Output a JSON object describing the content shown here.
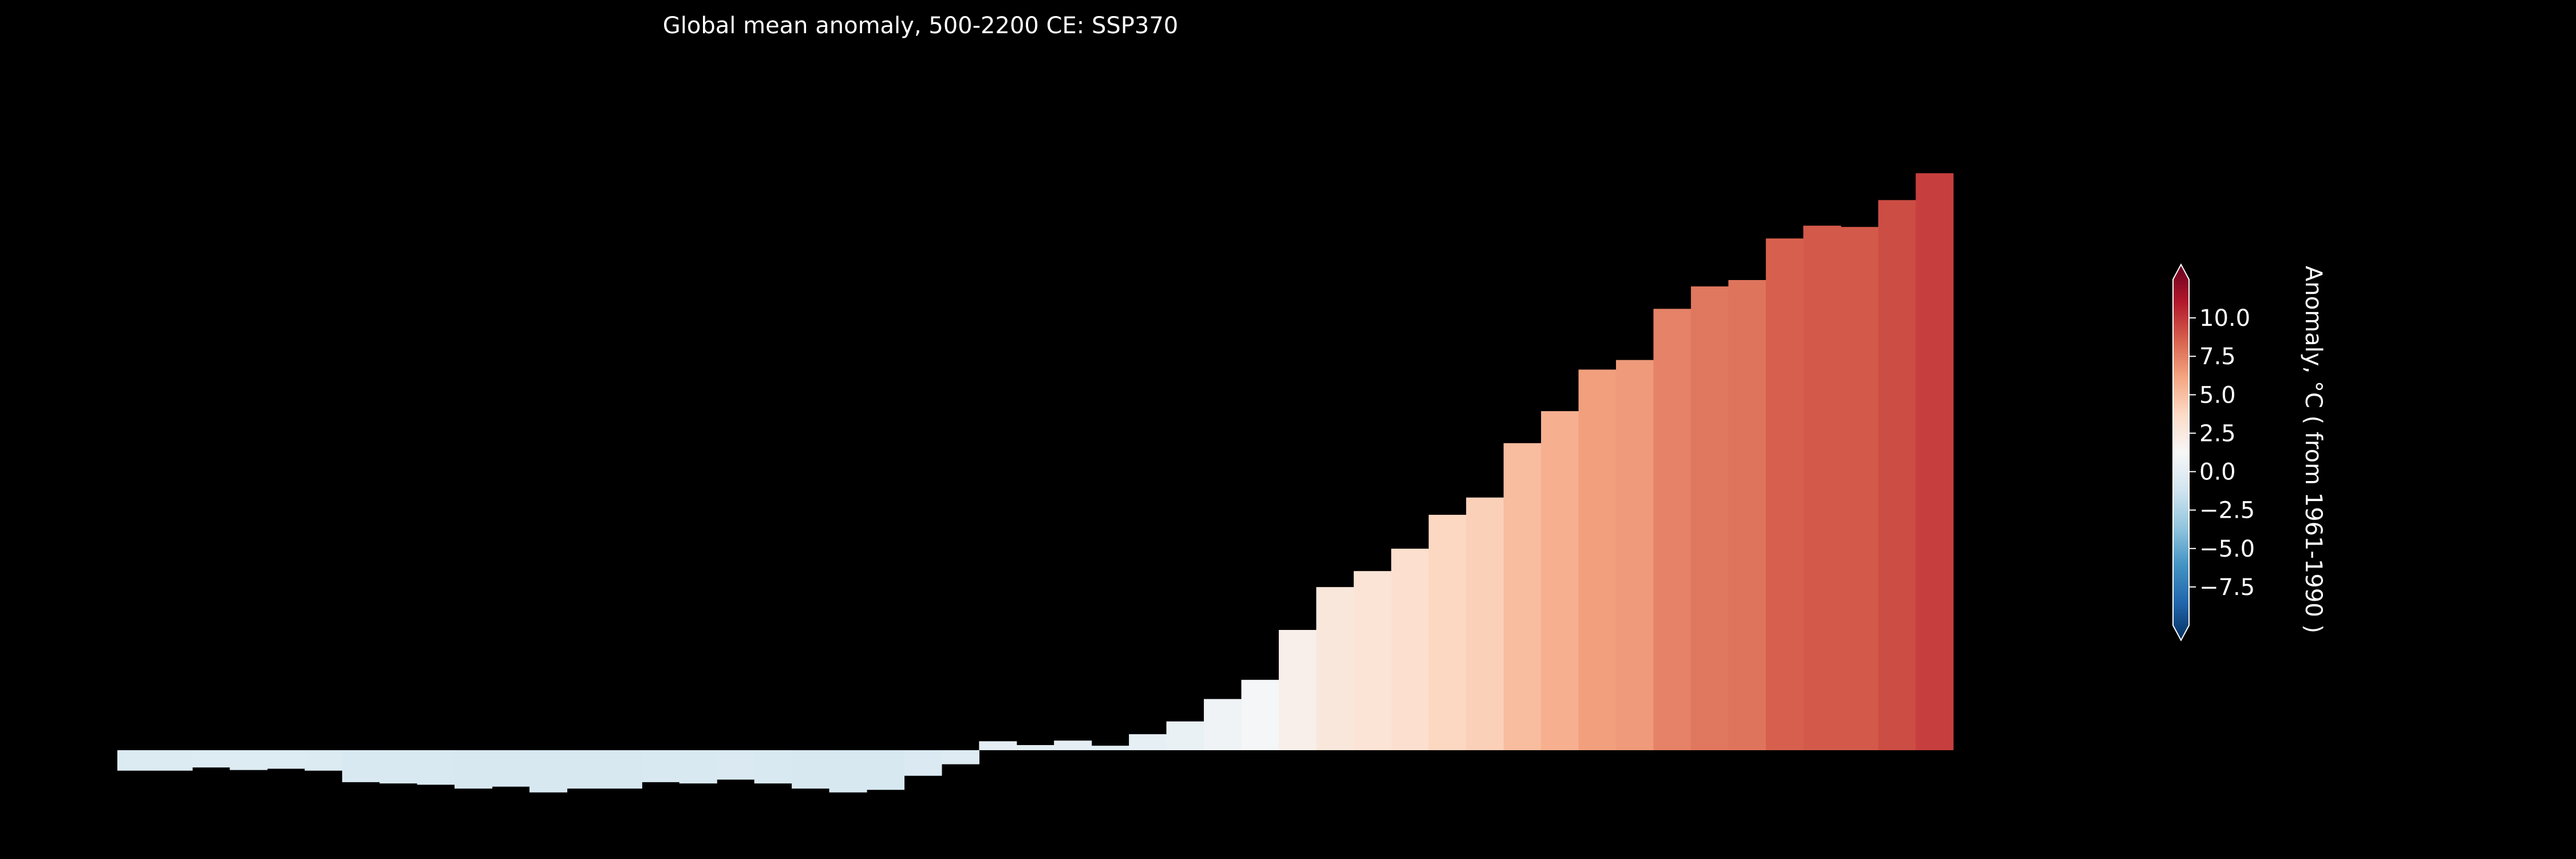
{
  "chart_data": {
    "type": "bar",
    "title": "Global mean anomaly, 500-2200 CE: SSP370",
    "x_range": [
      500,
      2200
    ],
    "bin_width": 35,
    "values": [
      -0.32,
      -0.32,
      -0.27,
      -0.31,
      -0.29,
      -0.32,
      -0.5,
      -0.52,
      -0.54,
      -0.6,
      -0.57,
      -0.66,
      -0.6,
      -0.6,
      -0.5,
      -0.52,
      -0.46,
      -0.52,
      -0.6,
      -0.66,
      -0.62,
      -0.4,
      -0.22,
      0.14,
      0.08,
      0.15,
      0.07,
      0.25,
      0.45,
      0.8,
      1.1,
      1.88,
      2.55,
      2.8,
      3.15,
      3.68,
      3.95,
      4.8,
      5.3,
      5.95,
      6.1,
      6.9,
      7.25,
      7.35,
      8.0,
      8.2,
      8.18,
      8.6,
      9.02
    ],
    "colorbar": {
      "label": "Anomaly, °C ( from 1961-1990 )",
      "vmin": -10,
      "vmax": 12.5,
      "extend": "both",
      "ticks": [
        "10.0",
        "7.5",
        "5.0",
        "2.5",
        "0.0",
        "−2.5",
        "−5.0",
        "−7.5"
      ],
      "tick_values": [
        10,
        7.5,
        5,
        2.5,
        0,
        -2.5,
        -5,
        -7.5
      ]
    },
    "colors": {
      "background": "#000000",
      "text": "#ffffff",
      "cmap": [
        "#053061",
        "#2166ac",
        "#4393c3",
        "#92c5de",
        "#d1e5f0",
        "#f7f7f7",
        "#fddbc7",
        "#f4a582",
        "#d6604d",
        "#b2182b",
        "#67001f"
      ]
    },
    "grid": false,
    "axes_visible": false
  }
}
